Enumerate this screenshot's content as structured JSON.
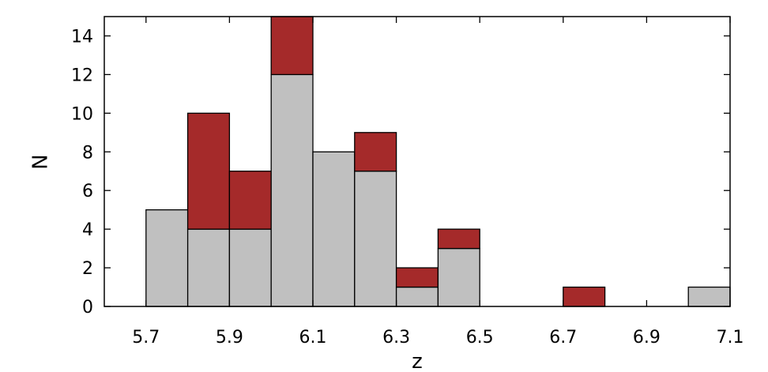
{
  "chart_data": {
    "type": "bar",
    "stacked": true,
    "title": "",
    "xlabel": "z",
    "ylabel": "N",
    "xlim": [
      5.6,
      7.1
    ],
    "ylim": [
      0,
      15
    ],
    "bin_width": 0.1,
    "bin_starts": [
      5.7,
      5.8,
      5.9,
      6.0,
      6.1,
      6.2,
      6.3,
      6.4,
      6.5,
      6.6,
      6.7,
      6.8,
      6.9,
      7.0
    ],
    "series": [
      {
        "color": "#c0c0c0",
        "values": [
          5,
          4,
          4,
          12,
          8,
          7,
          1,
          3,
          0,
          0,
          0,
          0,
          0,
          1
        ]
      },
      {
        "color": "#a52a2a",
        "values": [
          0,
          6,
          3,
          3,
          0,
          2,
          1,
          1,
          0,
          0,
          1,
          0,
          0,
          0
        ]
      }
    ],
    "x_ticks": [
      "5.7",
      "5.9",
      "6.1",
      "6.3",
      "6.5",
      "6.7",
      "6.9",
      "7.1"
    ],
    "y_ticks": [
      "0",
      "2",
      "4",
      "6",
      "8",
      "10",
      "12",
      "14"
    ],
    "grid": false,
    "legend": "none"
  }
}
